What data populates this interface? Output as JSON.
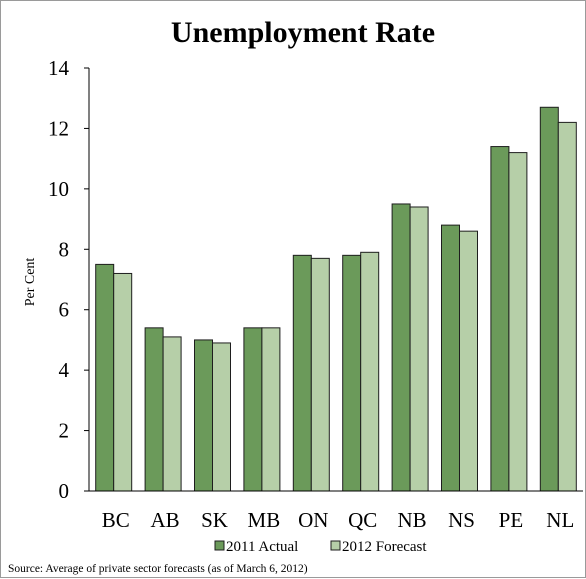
{
  "chart_data": {
    "type": "bar",
    "title": "Unemployment Rate",
    "xlabel": "",
    "ylabel": "Per Cent",
    "ylim": [
      0,
      14
    ],
    "yticks": [
      "0",
      "2",
      "4",
      "6",
      "8",
      "10",
      "12",
      "14"
    ],
    "categories": [
      "BC",
      "AB",
      "SK",
      "MB",
      "ON",
      "QC",
      "NB",
      "NS",
      "PE",
      "NL"
    ],
    "series": [
      {
        "name": "2011 Actual",
        "color": "#6b9a5a",
        "values": [
          7.5,
          5.4,
          5.0,
          5.4,
          7.8,
          7.8,
          9.5,
          8.8,
          11.4,
          12.7
        ]
      },
      {
        "name": "2012 Forecast",
        "color": "#b6cfa8",
        "values": [
          7.2,
          5.1,
          4.9,
          5.4,
          7.7,
          7.9,
          9.4,
          8.6,
          11.2,
          12.2
        ]
      }
    ],
    "grid": false,
    "legend": "bottom",
    "source": "Source: Average of private sector forecasts (as of March 6, 2012)"
  }
}
